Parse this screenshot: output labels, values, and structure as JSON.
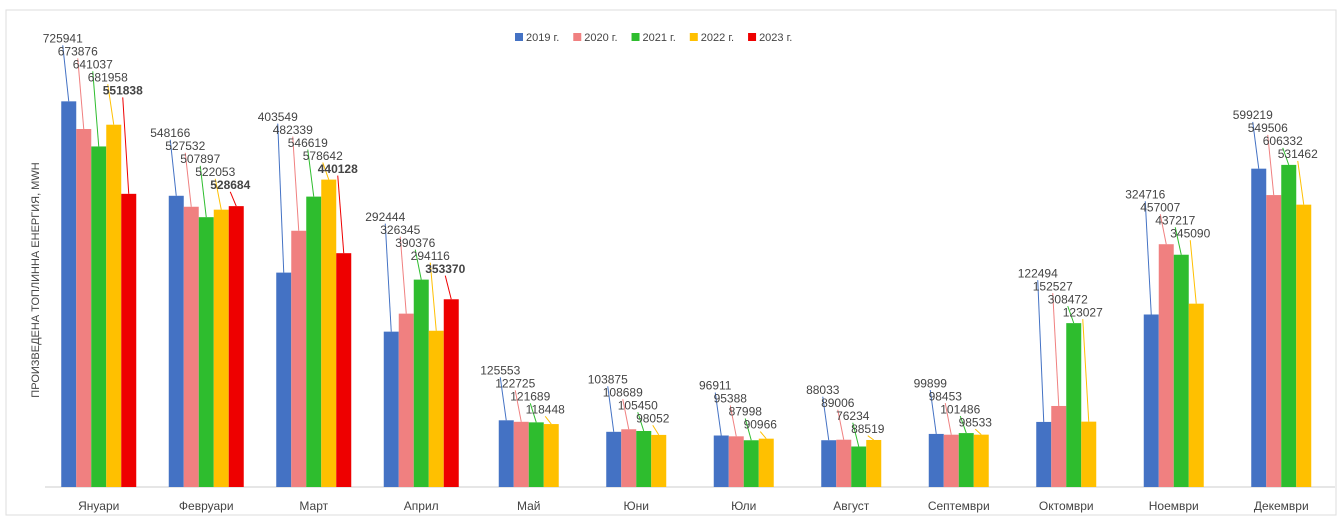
{
  "chart_data": {
    "type": "bar",
    "y_label": "ПРОИЗВЕДЕНА ТОПЛИННА ЕНЕРГИЯ, MWH",
    "categories": [
      "Януари",
      "Февруари",
      "Март",
      "Април",
      "Май",
      "Юни",
      "Юли",
      "Август",
      "Септември",
      "Октомври",
      "Ноември",
      "Декември"
    ],
    "series": [
      {
        "name": "2019 г.",
        "color": "#4472c4",
        "values": [
          725941,
          548166,
          403549,
          292444,
          125553,
          103875,
          96911,
          88033,
          99899,
          122494,
          324716,
          599219
        ]
      },
      {
        "name": "2020 г.",
        "color": "#f08080",
        "values": [
          673876,
          527532,
          482339,
          326345,
          122725,
          108689,
          95388,
          89006,
          98453,
          152527,
          457007,
          549506
        ]
      },
      {
        "name": "2021 г.",
        "color": "#2ebd2e",
        "values": [
          641037,
          507897,
          546619,
          390376,
          121689,
          105450,
          87998,
          76234,
          101486,
          308472,
          437217,
          606332
        ]
      },
      {
        "name": "2022 г.",
        "color": "#ffc000",
        "values": [
          681958,
          522053,
          578642,
          294116,
          118448,
          98052,
          90966,
          88519,
          98533,
          123027,
          345090,
          531462
        ]
      },
      {
        "name": "2023 г.",
        "color": "#ee0000",
        "values": [
          551838,
          528684,
          440128,
          353370,
          null,
          null,
          null,
          null,
          null,
          null,
          null,
          null
        ]
      }
    ],
    "ylim": [
      0,
      800000
    ],
    "legend": "top"
  }
}
